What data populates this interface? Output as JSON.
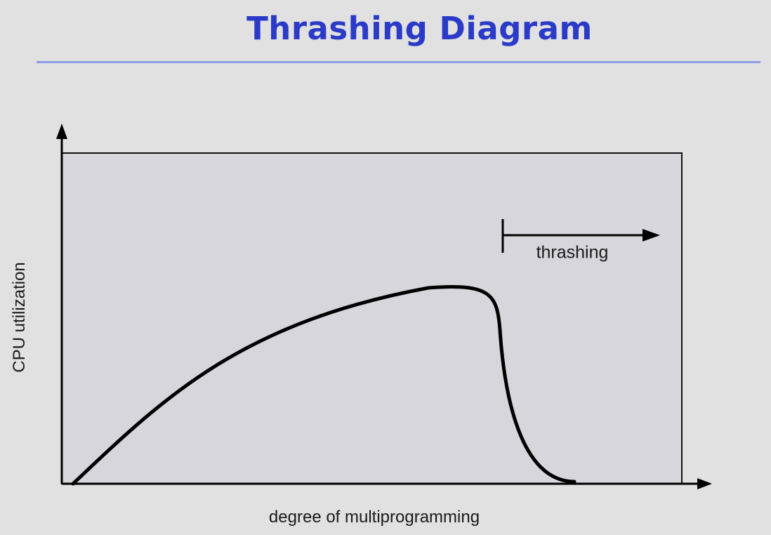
{
  "title": "Thrashing Diagram",
  "y_axis_label": "CPU utilization",
  "x_axis_label": "degree of multiprogramming",
  "annotation": "thrashing",
  "colors": {
    "title": "#2b3bc8",
    "rule": "#8e9be6",
    "background": "#e1e1e1",
    "plot_area": "#d7d6db",
    "curve": "#000000"
  }
}
